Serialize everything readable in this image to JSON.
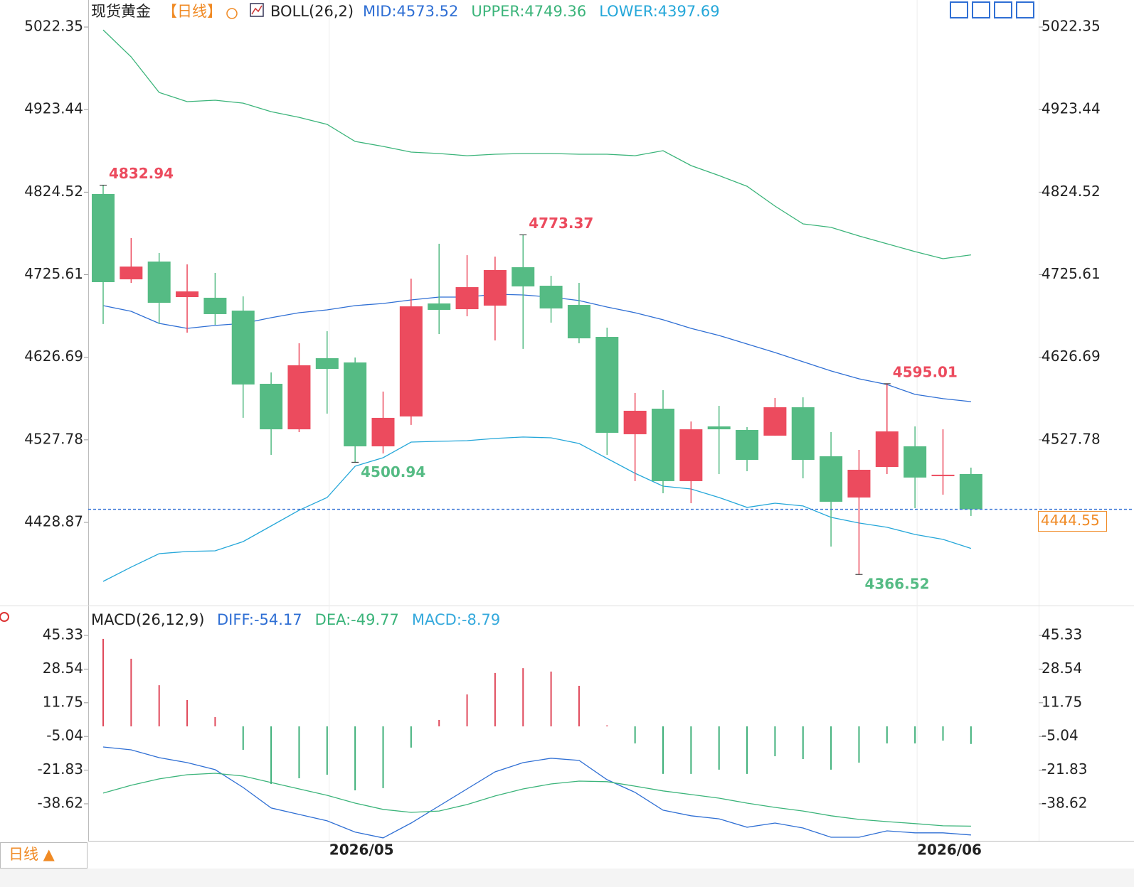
{
  "chart_data": [
    {
      "type": "candlestick",
      "title": "现货黄金",
      "period": "【日线】",
      "indicator": "BOLL(26,2)",
      "period_tab": "日线 ▲",
      "categories": [
        null,
        null,
        null,
        null,
        null,
        null,
        null,
        null,
        "2026/05",
        null,
        null,
        null,
        null,
        null,
        null,
        null,
        null,
        null,
        null,
        null,
        null,
        null,
        null,
        null,
        null,
        null,
        null,
        null,
        null,
        "2026/06",
        null,
        null
      ],
      "open": [
        4822.3,
        4720.1,
        4741.4,
        4698.8,
        4698.0,
        4682.6,
        4594.9,
        4540.4,
        4625.6,
        4620.5,
        4520.0,
        4555.8,
        4691.2,
        4684.3,
        4688.6,
        4734.6,
        4712.4,
        4689.4,
        4651.1,
        4534.5,
        4565.1,
        4478.3,
        4543.9,
        4539.6,
        4532.8,
        4566.8,
        4508.1,
        4458.7,
        4495.3,
        4520.0,
        4484.3,
        4486.8
      ],
      "high": [
        4832.94,
        4769.5,
        4751.6,
        4738.0,
        4727.8,
        4699.7,
        4608.5,
        4643.5,
        4657.9,
        4626.4,
        4585.6,
        4720.9,
        4762.7,
        4749.0,
        4747.3,
        4773.37,
        4724.3,
        4715.8,
        4662.2,
        4583.9,
        4587.3,
        4549.8,
        4568.5,
        4543.0,
        4577.9,
        4578.7,
        4537.0,
        4515.7,
        4595.01,
        4543.9,
        4540.4,
        4494.5
      ],
      "low": [
        4666.5,
        4715.8,
        4666.5,
        4656.2,
        4665.6,
        4554.1,
        4509.8,
        4537.0,
        4559.2,
        4500.94,
        4511.5,
        4545.6,
        4654.5,
        4675.8,
        4646.9,
        4636.7,
        4668.2,
        4643.5,
        4509.8,
        4478.3,
        4463.8,
        4451.9,
        4486.8,
        4490.2,
        4532.8,
        4481.7,
        4399.9,
        4366.52,
        4486.8,
        4445.9,
        4462.1,
        4436.6
      ],
      "close": [
        4716.7,
        4735.4,
        4692.0,
        4705.6,
        4678.4,
        4594.1,
        4540.4,
        4617.1,
        4612.8,
        4520.0,
        4554.1,
        4687.7,
        4683.5,
        4710.7,
        4731.2,
        4711.6,
        4685.2,
        4649.4,
        4536.2,
        4562.6,
        4478.3,
        4540.4,
        4540.4,
        4503.8,
        4566.8,
        4503.8,
        4453.6,
        4491.9,
        4537.9,
        4482.6,
        4486.0,
        4444.55
      ],
      "up_color": "#ec4b5e",
      "down_color": "#55bb84",
      "last_price_color": "#f08a24",
      "series": [
        {
          "name": "MID:4573.52",
          "color": "#2f6fd4",
          "values": [
            4688.6,
            4681.8,
            4667.3,
            4661.3,
            4664.8,
            4667.3,
            4674.1,
            4680.1,
            4683.5,
            4688.6,
            4691.1,
            4695.4,
            4698.8,
            4698.8,
            4702.2,
            4701.4,
            4698.8,
            4694.6,
            4686.9,
            4680.1,
            4671.6,
            4661.3,
            4652.8,
            4642.6,
            4632.4,
            4621.3,
            4610.3,
            4600.9,
            4594.1,
            4582.2,
            4577.1,
            4573.52
          ]
        },
        {
          "name": "UPPER:4749.36",
          "color": "#3bb47a",
          "values": [
            5018.9,
            4986.6,
            4944.0,
            4933.0,
            4934.7,
            4931.2,
            4921.0,
            4914.2,
            4905.7,
            4885.3,
            4879.3,
            4872.5,
            4870.8,
            4868.2,
            4870.0,
            4870.8,
            4870.8,
            4870.0,
            4870.0,
            4868.2,
            4874.2,
            4856.3,
            4844.4,
            4831.6,
            4807.8,
            4786.5,
            4782.3,
            4772.0,
            4762.7,
            4753.3,
            4744.8,
            4749.36
          ]
        },
        {
          "name": "LOWER:4397.69",
          "color": "#25a7d9",
          "values": [
            4358.2,
            4375.3,
            4391.4,
            4394.0,
            4394.8,
            4405.9,
            4424.6,
            4443.4,
            4458.7,
            4496.2,
            4506.4,
            4525.1,
            4526.0,
            4526.8,
            4529.4,
            4531.1,
            4530.2,
            4523.4,
            4505.5,
            4487.7,
            4472.3,
            4468.9,
            4458.7,
            4446.8,
            4451.9,
            4448.5,
            4434.9,
            4428.1,
            4423.0,
            4414.4,
            4408.5,
            4397.69
          ]
        }
      ],
      "ylim": [
        4335.2,
        5029.2
      ],
      "yticks": [
        5022.35,
        4923.44,
        4824.52,
        4725.61,
        4626.69,
        4527.78,
        4428.87
      ]
    },
    {
      "type": "macd",
      "title": "MACD(26,12,9)",
      "up_color": "#e0495b",
      "down_color": "#3fb07a",
      "series": [
        {
          "name": "DIFF:-54.17",
          "color": "#2f6fd4",
          "kind": "line",
          "values": [
            -10.3,
            -11.7,
            -15.6,
            -18.1,
            -21.6,
            -30.5,
            -40.7,
            -43.9,
            -47.1,
            -52.7,
            -55.6,
            -48.2,
            -39.7,
            -31.2,
            -22.7,
            -18.1,
            -15.9,
            -17.0,
            -26.6,
            -32.9,
            -41.8,
            -44.6,
            -46.1,
            -50.3,
            -48.2,
            -50.7,
            -55.3,
            -55.3,
            -52.1,
            -53.1,
            -53.1,
            -54.17
          ]
        },
        {
          "name": "DEA:-49.77",
          "color": "#3bb47a",
          "kind": "line",
          "values": [
            -33.3,
            -29.4,
            -26.2,
            -24.1,
            -23.4,
            -24.8,
            -28.0,
            -31.2,
            -34.4,
            -38.3,
            -41.4,
            -42.9,
            -42.2,
            -39.0,
            -34.7,
            -31.2,
            -28.7,
            -27.3,
            -27.6,
            -29.8,
            -32.2,
            -34.0,
            -35.8,
            -38.3,
            -40.4,
            -42.2,
            -44.6,
            -46.4,
            -47.5,
            -48.5,
            -49.6,
            -49.77
          ]
        },
        {
          "name": "MACD:-8.79",
          "color": "#35a9dc",
          "kind": "bar",
          "values": [
            43.6,
            33.7,
            20.5,
            13.1,
            4.6,
            -11.7,
            -28.7,
            -25.9,
            -24.1,
            -31.9,
            -30.8,
            -10.6,
            3.2,
            15.9,
            26.6,
            29.0,
            27.3,
            20.2,
            0.5,
            -8.5,
            -23.7,
            -23.7,
            -21.6,
            -23.7,
            -14.9,
            -16.3,
            -21.6,
            -18.1,
            -8.5,
            -8.5,
            -7.1,
            -8.79
          ]
        }
      ],
      "ylim": [
        -56.0,
        50.3
      ],
      "yticks": [
        45.33,
        28.54,
        11.75,
        -5.04,
        -21.83,
        -38.62
      ]
    }
  ]
}
